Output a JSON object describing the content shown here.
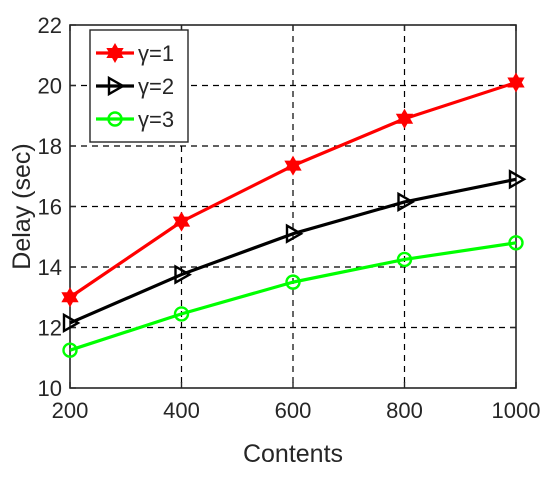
{
  "chart_data": {
    "type": "line",
    "xlabel": "Contents",
    "ylabel": "Delay (sec)",
    "x": [
      200,
      400,
      600,
      800,
      1000
    ],
    "xlim": [
      200,
      1000
    ],
    "ylim": [
      10,
      22
    ],
    "xticks": [
      "200",
      "400",
      "600",
      "800",
      "1000"
    ],
    "yticks": [
      "10",
      "12",
      "14",
      "16",
      "18",
      "20",
      "22"
    ],
    "grid": true,
    "legend_position": "top-left",
    "series": [
      {
        "name": "γ=1",
        "values": [
          13.0,
          15.5,
          17.35,
          18.9,
          20.1
        ],
        "color": "#ff0000",
        "marker": "hexagram"
      },
      {
        "name": "γ=2",
        "values": [
          12.15,
          13.75,
          15.1,
          16.15,
          16.9
        ],
        "color": "#000000",
        "marker": "triangle-right"
      },
      {
        "name": "γ=3",
        "values": [
          11.25,
          12.45,
          13.5,
          14.25,
          14.8
        ],
        "color": "#00ff00",
        "marker": "circle"
      }
    ]
  }
}
